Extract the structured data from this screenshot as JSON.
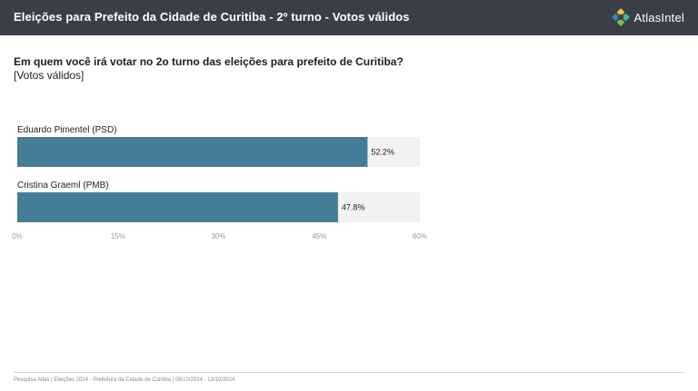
{
  "header": {
    "title": "Eleições para Prefeito da Cidade de Curitiba - 2º turno - Votos válidos",
    "logo_text": "AtlasIntel",
    "background": "#3a3f47",
    "logo_colors": [
      "#f2c230",
      "#45b8b0",
      "#7fc04a",
      "#3b7fc4"
    ]
  },
  "question": "Em quem você irá votar no 2o turno das eleições para prefeito de Curitiba?",
  "subtitle": "[Votos válidos]",
  "chart_data": {
    "type": "bar",
    "orientation": "horizontal",
    "categories": [
      "Eduardo Pimentel (PSD)",
      "Cristina Graeml (PMB)"
    ],
    "values": [
      52.2,
      47.8
    ],
    "value_labels": [
      "52.2%",
      "47.8%"
    ],
    "xlim": [
      0,
      60
    ],
    "ticks": [
      0,
      15,
      30,
      45,
      60
    ],
    "tick_labels": [
      "0%",
      "15%",
      "30%",
      "45%",
      "60%"
    ],
    "bar_color": "#467e97",
    "track_color": "#f2f2f2",
    "grid": false
  },
  "footer": "Pesquisa Atlas  |  Eleições 2024 - Prefeitura da Cidade de Curitiba  |  08/10/2024 - 13/10/2024"
}
